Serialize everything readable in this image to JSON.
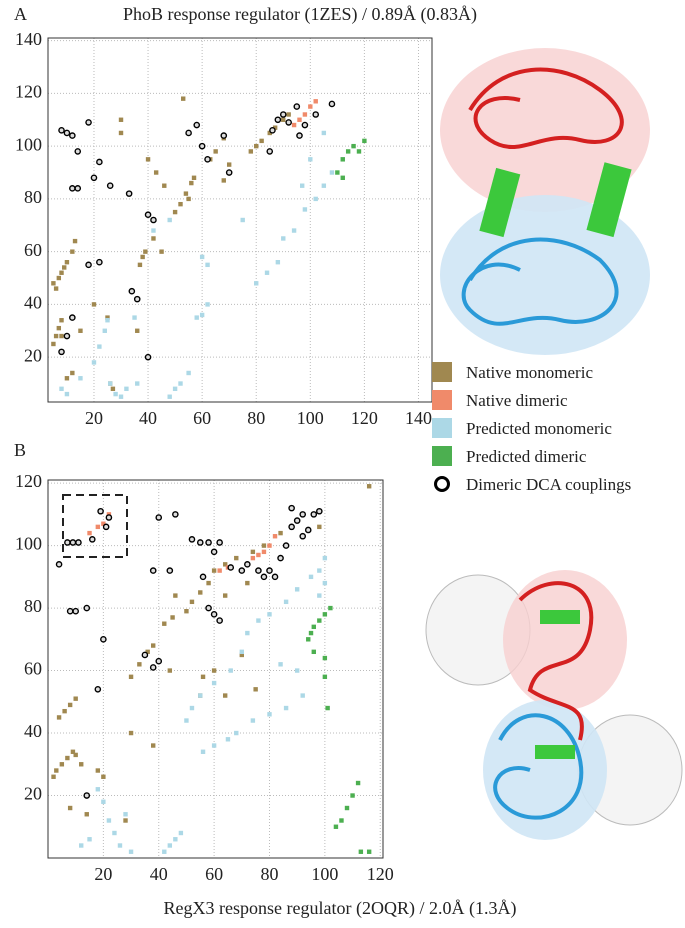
{
  "chart_data": [
    {
      "type": "scatter",
      "panel_label": "A",
      "title": "PhoB response regulator (1ZES) / 0.89Å (0.83Å)",
      "xlim": [
        3,
        145
      ],
      "ylim": [
        3,
        141
      ],
      "xticks": [
        20,
        40,
        60,
        80,
        100,
        120,
        140
      ],
      "yticks": [
        20,
        40,
        60,
        80,
        100,
        120,
        140
      ],
      "grid": true,
      "series": [
        {
          "name": "Native monomeric",
          "color": "#a08850",
          "marker": "square",
          "x": [
            5,
            6,
            7,
            8,
            9,
            10,
            5,
            6,
            7,
            8,
            37,
            38,
            39,
            50,
            52,
            54,
            56,
            57,
            55,
            63,
            65,
            68,
            70,
            68,
            78,
            80,
            82,
            85,
            87,
            90,
            92,
            30,
            30,
            40,
            43,
            46,
            36,
            42,
            45,
            53,
            15,
            20,
            25,
            8,
            10,
            12,
            26,
            27,
            12,
            13
          ],
          "y": [
            48,
            46,
            50,
            52,
            54,
            56,
            25,
            28,
            31,
            34,
            55,
            58,
            60,
            75,
            78,
            82,
            86,
            88,
            80,
            95,
            98,
            103,
            93,
            87,
            98,
            100,
            102,
            105,
            107,
            110,
            112,
            110,
            105,
            95,
            90,
            85,
            30,
            65,
            60,
            118,
            30,
            40,
            35,
            28,
            12,
            14,
            10,
            8,
            60,
            64
          ]
        },
        {
          "name": "Native dimeric",
          "color": "#f08a6a",
          "marker": "square",
          "x": [
            98,
            100,
            102,
            96,
            94
          ],
          "y": [
            112,
            115,
            117,
            110,
            108
          ]
        },
        {
          "name": "Predicted monomeric",
          "color": "#acd8e6",
          "marker": "square",
          "x": [
            8,
            10,
            15,
            20,
            22,
            24,
            26,
            28,
            30,
            32,
            36,
            48,
            50,
            52,
            55,
            25,
            35,
            58,
            60,
            62,
            42,
            48,
            62,
            80,
            84,
            88,
            90,
            94,
            98,
            102,
            105,
            108,
            112,
            100,
            105,
            97,
            75,
            60
          ],
          "y": [
            8,
            6,
            12,
            18,
            24,
            30,
            10,
            6,
            5,
            8,
            10,
            5,
            8,
            10,
            14,
            34,
            35,
            35,
            36,
            40,
            68,
            72,
            55,
            48,
            52,
            56,
            65,
            68,
            76,
            80,
            85,
            90,
            95,
            95,
            105,
            85,
            72,
            58
          ]
        },
        {
          "name": "Predicted dimeric",
          "color": "#4caf50",
          "marker": "square",
          "x": [
            110,
            112,
            114,
            116,
            118,
            120,
            112
          ],
          "y": [
            90,
            95,
            98,
            100,
            98,
            102,
            88
          ]
        },
        {
          "name": "Dimeric DCA couplings",
          "color": "#000000",
          "marker": "circle",
          "x": [
            8,
            10,
            12,
            18,
            14,
            22,
            12,
            14,
            20,
            26,
            33,
            42,
            40,
            18,
            22,
            8,
            10,
            12,
            34,
            36,
            40,
            55,
            58,
            60,
            62,
            68,
            70,
            85,
            88,
            90,
            92,
            95,
            98,
            102,
            108,
            86,
            96
          ],
          "y": [
            106,
            105,
            104,
            109,
            98,
            94,
            84,
            84,
            88,
            85,
            82,
            72,
            74,
            55,
            56,
            22,
            28,
            35,
            45,
            42,
            20,
            105,
            108,
            100,
            95,
            104,
            90,
            98,
            110,
            112,
            109,
            115,
            108,
            112,
            116,
            106,
            104
          ]
        }
      ]
    },
    {
      "type": "scatter",
      "panel_label": "B",
      "title": "RegX3 response regulator (2OQR) / 2.0Å (1.3Å)",
      "xlim": [
        0,
        121
      ],
      "ylim": [
        0,
        121
      ],
      "xticks": [
        20,
        40,
        60,
        80,
        100,
        120
      ],
      "yticks": [
        20,
        40,
        60,
        80,
        100,
        120
      ],
      "grid": true,
      "series": [
        {
          "color": "#a08850",
          "marker": "square",
          "x": [
            2,
            3,
            5,
            7,
            9,
            10,
            4,
            6,
            8,
            10,
            12,
            18,
            20,
            14,
            8,
            30,
            33,
            36,
            38,
            30,
            42,
            45,
            50,
            52,
            55,
            58,
            60,
            64,
            68,
            74,
            78,
            84,
            88,
            70,
            75,
            56,
            55,
            60,
            46,
            44,
            64,
            64,
            38,
            28,
            72,
            98,
            116
          ],
          "y": [
            26,
            28,
            30,
            32,
            34,
            33,
            45,
            47,
            49,
            51,
            30,
            28,
            26,
            14,
            16,
            58,
            62,
            66,
            68,
            40,
            75,
            77,
            79,
            82,
            85,
            88,
            92,
            94,
            96,
            98,
            100,
            104,
            106,
            65,
            54,
            58,
            52,
            60,
            84,
            60,
            84,
            52,
            36,
            12,
            88,
            106,
            119
          ]
        },
        {
          "color": "#f08a6a",
          "marker": "square",
          "x": [
            15,
            18,
            20,
            22,
            8,
            62,
            65,
            76,
            78,
            80,
            82,
            74
          ],
          "y": [
            104,
            106,
            107,
            110,
            101,
            92,
            93,
            97,
            98,
            100,
            103,
            96
          ]
        },
        {
          "color": "#acd8e6",
          "marker": "square",
          "x": [
            18,
            20,
            22,
            24,
            26,
            30,
            28,
            42,
            44,
            46,
            48,
            56,
            60,
            65,
            50,
            52,
            55,
            60,
            66,
            70,
            72,
            76,
            80,
            86,
            90,
            95,
            98,
            86,
            92,
            68,
            74,
            80,
            90,
            84,
            98,
            100,
            15,
            12,
            100
          ],
          "y": [
            22,
            18,
            12,
            8,
            4,
            2,
            14,
            2,
            4,
            6,
            8,
            34,
            36,
            38,
            44,
            48,
            52,
            56,
            60,
            66,
            72,
            76,
            78,
            82,
            86,
            90,
            92,
            48,
            52,
            40,
            44,
            46,
            60,
            62,
            84,
            88,
            6,
            4,
            96
          ]
        },
        {
          "color": "#4caf50",
          "marker": "square",
          "x": [
            96,
            98,
            100,
            102,
            94,
            96,
            100,
            101,
            104,
            106,
            108,
            110,
            112,
            113,
            116,
            100,
            95
          ],
          "y": [
            74,
            76,
            78,
            80,
            70,
            66,
            64,
            48,
            10,
            12,
            16,
            20,
            24,
            2,
            2,
            58,
            72
          ]
        },
        {
          "color": "#000000",
          "marker": "circle",
          "x": [
            4,
            7,
            9,
            11,
            16,
            21,
            22,
            19,
            8,
            10,
            14,
            20,
            18,
            14,
            38,
            35,
            40,
            38,
            44,
            40,
            46,
            52,
            55,
            58,
            62,
            60,
            56,
            58,
            60,
            62,
            66,
            70,
            72,
            76,
            78,
            80,
            82,
            84,
            86,
            88,
            90,
            92,
            96,
            98,
            94,
            88,
            92
          ],
          "y": [
            94,
            101,
            101,
            101,
            102,
            106,
            109,
            111,
            79,
            79,
            80,
            70,
            54,
            20,
            61,
            65,
            63,
            92,
            92,
            109,
            110,
            102,
            101,
            101,
            101,
            98,
            90,
            80,
            78,
            76,
            93,
            92,
            94,
            92,
            90,
            92,
            90,
            96,
            100,
            106,
            108,
            110,
            110,
            111,
            105,
            112,
            103
          ]
        }
      ]
    }
  ]
}
